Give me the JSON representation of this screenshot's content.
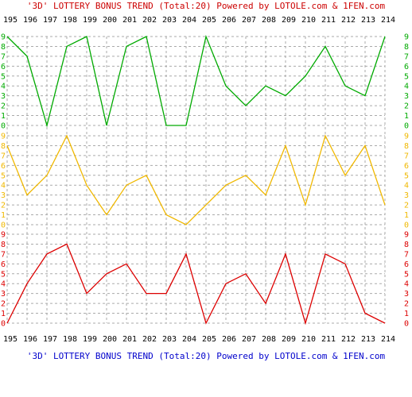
{
  "chart_data": {
    "type": "line",
    "title": "'3D' LOTTERY BONUS TREND (Total:20)  Powered by LOTOLE.com & 1FEN.com",
    "x": [
      "195",
      "196",
      "197",
      "198",
      "199",
      "200",
      "201",
      "202",
      "203",
      "204",
      "205",
      "206",
      "207",
      "208",
      "209",
      "210",
      "211",
      "212",
      "213",
      "214"
    ],
    "y_tick_labels": [
      "0",
      "1",
      "2",
      "3",
      "4",
      "5",
      "6",
      "7",
      "8",
      "9"
    ],
    "ylim": [
      0,
      9
    ],
    "grid": true,
    "legend": "none",
    "series": [
      {
        "color": "#00aa00",
        "values": [
          9,
          7,
          0,
          8,
          9,
          0,
          8,
          9,
          0,
          0,
          9,
          4,
          2,
          4,
          3,
          5,
          8,
          4,
          3,
          9
        ]
      },
      {
        "color": "#f0b800",
        "values": [
          8,
          3,
          5,
          9,
          4,
          1,
          4,
          5,
          1,
          0,
          2,
          4,
          5,
          3,
          8,
          2,
          9,
          5,
          8,
          2
        ]
      },
      {
        "color": "#dd0000",
        "values": [
          0,
          4,
          7,
          8,
          3,
          5,
          6,
          3,
          3,
          7,
          0,
          4,
          5,
          2,
          7,
          0,
          7,
          6,
          1,
          0
        ]
      }
    ],
    "colors": {
      "top_title": "#cc0000",
      "bottom_title": "#0000cc",
      "tick_text": "#000000",
      "band_labels": [
        "#00aa00",
        "#f0b800",
        "#dd0000"
      ],
      "grid": "#aaaaaa"
    }
  }
}
